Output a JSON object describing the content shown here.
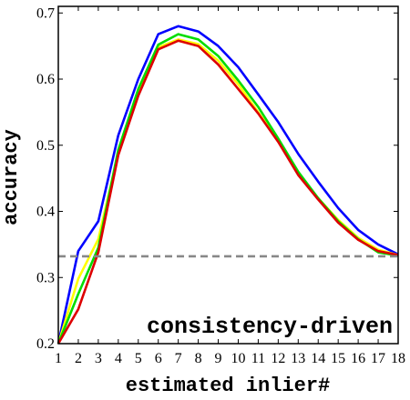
{
  "chart_data": {
    "type": "line",
    "xlabel": "estimated inlier#",
    "ylabel": "accuracy",
    "annotation": "consistency-driven",
    "x": [
      1,
      2,
      3,
      4,
      5,
      6,
      7,
      8,
      9,
      10,
      11,
      12,
      13,
      14,
      15,
      16,
      17,
      18
    ],
    "xlim": [
      1,
      18
    ],
    "ylim": [
      0.2,
      0.71
    ],
    "xticks": [
      "1",
      "2",
      "3",
      "4",
      "5",
      "6",
      "7",
      "8",
      "9",
      "10",
      "11",
      "12",
      "13",
      "14",
      "15",
      "16",
      "17",
      "18"
    ],
    "yticks": [
      0.2,
      0.3,
      0.4,
      0.5,
      0.6,
      0.7
    ],
    "ytick_labels": [
      "0.2",
      "0.3",
      "0.4",
      "0.5",
      "0.6",
      "0.7"
    ],
    "grid": false,
    "series": [
      {
        "color": "#0000ff",
        "values": [
          0.2,
          0.34,
          0.385,
          0.515,
          0.6,
          0.668,
          0.68,
          0.672,
          0.65,
          0.618,
          0.577,
          0.535,
          0.487,
          0.445,
          0.405,
          0.372,
          0.35,
          0.335
        ]
      },
      {
        "color": "#ffff00",
        "values": [
          0.2,
          0.298,
          0.358,
          0.488,
          0.578,
          0.648,
          0.66,
          0.653,
          0.628,
          0.592,
          0.55,
          0.507,
          0.458,
          0.42,
          0.387,
          0.36,
          0.342,
          0.334
        ]
      },
      {
        "color": "#00dd00",
        "values": [
          0.2,
          0.275,
          0.345,
          0.493,
          0.585,
          0.652,
          0.668,
          0.66,
          0.635,
          0.598,
          0.558,
          0.51,
          0.46,
          0.42,
          0.385,
          0.358,
          0.338,
          0.333
        ]
      },
      {
        "color": "#dd0000",
        "values": [
          0.2,
          0.252,
          0.338,
          0.485,
          0.575,
          0.645,
          0.658,
          0.65,
          0.622,
          0.585,
          0.548,
          0.505,
          0.455,
          0.418,
          0.383,
          0.357,
          0.34,
          0.334
        ]
      }
    ],
    "baseline": {
      "value": 0.332,
      "color": "#888888",
      "style": "dashed"
    }
  }
}
